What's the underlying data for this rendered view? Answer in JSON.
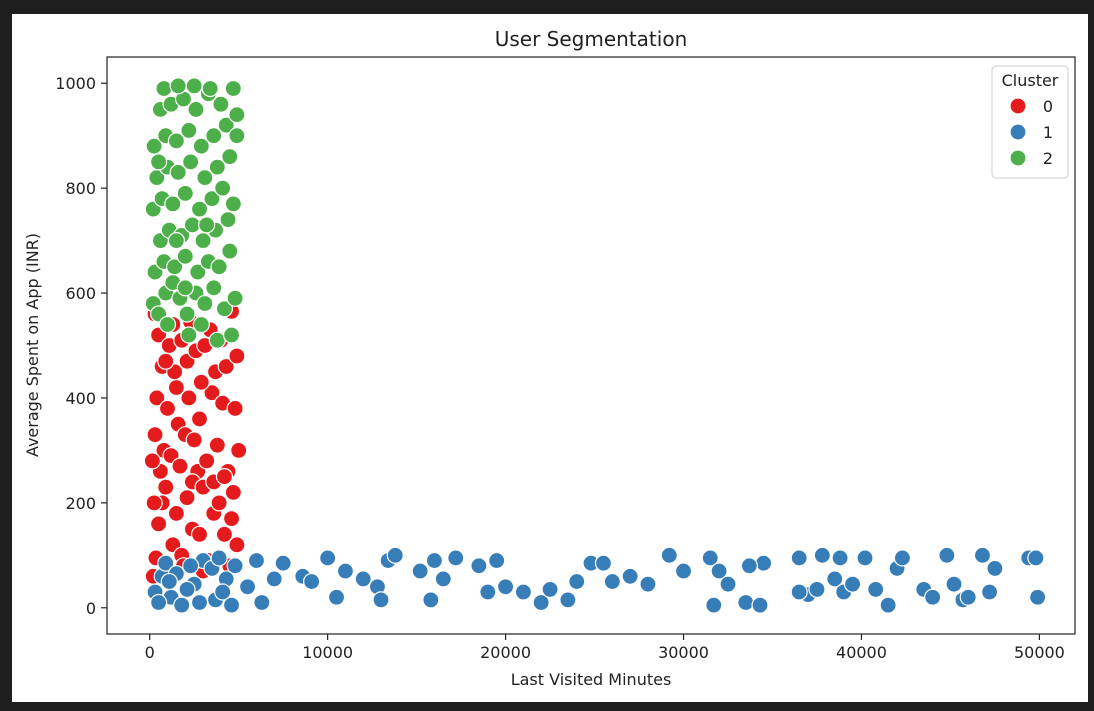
{
  "chart_data": {
    "type": "scatter",
    "title": "User Segmentation",
    "xlabel": "Last Visited Minutes",
    "ylabel": "Average Spent on App (INR)",
    "xlim": [
      -2400,
      52000
    ],
    "ylim": [
      -50,
      1050
    ],
    "xticks": [
      0,
      10000,
      20000,
      30000,
      40000,
      50000
    ],
    "xtick_labels": [
      "0",
      "10000",
      "20000",
      "30000",
      "40000",
      "50000"
    ],
    "yticks": [
      0,
      200,
      400,
      600,
      800,
      1000
    ],
    "ytick_labels": [
      "0",
      "200",
      "400",
      "600",
      "800",
      "1000"
    ],
    "grid": false,
    "legend": {
      "title": "Cluster",
      "placement": "top-right",
      "entries": [
        {
          "label": "0",
          "color": "#e41a1c"
        },
        {
          "label": "1",
          "color": "#377eb8"
        },
        {
          "label": "2",
          "color": "#4daf4a"
        }
      ]
    },
    "series": [
      {
        "name": "0",
        "color": "#e41a1c",
        "points": [
          [
            200,
            60
          ],
          [
            350,
            95
          ],
          [
            500,
            160
          ],
          [
            700,
            200
          ],
          [
            900,
            230
          ],
          [
            1100,
            60
          ],
          [
            1300,
            120
          ],
          [
            1500,
            180
          ],
          [
            1800,
            100
          ],
          [
            2100,
            210
          ],
          [
            2400,
            150
          ],
          [
            2700,
            260
          ],
          [
            3000,
            70
          ],
          [
            3300,
            90
          ],
          [
            3600,
            180
          ],
          [
            3900,
            200
          ],
          [
            4200,
            140
          ],
          [
            4600,
            170
          ],
          [
            4900,
            120
          ],
          [
            600,
            260
          ],
          [
            300,
            330
          ],
          [
            800,
            300
          ],
          [
            1200,
            290
          ],
          [
            1600,
            350
          ],
          [
            2000,
            330
          ],
          [
            2500,
            320
          ],
          [
            3200,
            280
          ],
          [
            3800,
            310
          ],
          [
            4400,
            260
          ],
          [
            5000,
            300
          ],
          [
            400,
            400
          ],
          [
            1000,
            380
          ],
          [
            1500,
            420
          ],
          [
            2200,
            400
          ],
          [
            2800,
            360
          ],
          [
            3500,
            410
          ],
          [
            4100,
            390
          ],
          [
            4800,
            380
          ],
          [
            700,
            460
          ],
          [
            1400,
            450
          ],
          [
            2100,
            470
          ],
          [
            2900,
            430
          ],
          [
            3700,
            450
          ],
          [
            4300,
            460
          ],
          [
            4900,
            480
          ],
          [
            500,
            520
          ],
          [
            1100,
            500
          ],
          [
            1800,
            510
          ],
          [
            2600,
            490
          ],
          [
            3400,
            530
          ],
          [
            4000,
            510
          ],
          [
            4600,
            565
          ],
          [
            300,
            560
          ],
          [
            1300,
            540
          ],
          [
            2300,
            545
          ],
          [
            3100,
            500
          ],
          [
            900,
            470
          ],
          [
            1700,
            270
          ],
          [
            2400,
            240
          ],
          [
            3000,
            230
          ],
          [
            3600,
            240
          ],
          [
            4200,
            250
          ],
          [
            4700,
            220
          ],
          [
            150,
            280
          ],
          [
            250,
            200
          ],
          [
            2800,
            140
          ],
          [
            1900,
            80
          ],
          [
            4500,
            80
          ]
        ]
      },
      {
        "name": "1",
        "color": "#377eb8",
        "points": [
          [
            300,
            30
          ],
          [
            700,
            60
          ],
          [
            1200,
            20
          ],
          [
            1800,
            5
          ],
          [
            2500,
            45
          ],
          [
            3000,
            90
          ],
          [
            3700,
            15
          ],
          [
            4300,
            55
          ],
          [
            4800,
            80
          ],
          [
            500,
            10
          ],
          [
            900,
            85
          ],
          [
            1500,
            65
          ],
          [
            2100,
            35
          ],
          [
            2800,
            10
          ],
          [
            3500,
            75
          ],
          [
            4100,
            30
          ],
          [
            4600,
            5
          ],
          [
            1100,
            50
          ],
          [
            2300,
            80
          ],
          [
            3900,
            95
          ],
          [
            6000,
            90
          ],
          [
            7500,
            85
          ],
          [
            5500,
            40
          ],
          [
            6300,
            10
          ],
          [
            7000,
            55
          ],
          [
            8600,
            60
          ],
          [
            9100,
            50
          ],
          [
            10000,
            95
          ],
          [
            10500,
            20
          ],
          [
            11000,
            70
          ],
          [
            12000,
            55
          ],
          [
            12800,
            40
          ],
          [
            13000,
            15
          ],
          [
            13400,
            90
          ],
          [
            13800,
            100
          ],
          [
            15200,
            70
          ],
          [
            15800,
            15
          ],
          [
            16000,
            90
          ],
          [
            16500,
            55
          ],
          [
            17200,
            95
          ],
          [
            18500,
            80
          ],
          [
            19000,
            30
          ],
          [
            19500,
            90
          ],
          [
            20000,
            40
          ],
          [
            21000,
            30
          ],
          [
            22000,
            10
          ],
          [
            22500,
            35
          ],
          [
            23500,
            15
          ],
          [
            24000,
            50
          ],
          [
            24800,
            85
          ],
          [
            25500,
            85
          ],
          [
            26000,
            50
          ],
          [
            27000,
            60
          ],
          [
            28000,
            45
          ],
          [
            29200,
            100
          ],
          [
            30000,
            70
          ],
          [
            31500,
            95
          ],
          [
            32000,
            70
          ],
          [
            32500,
            45
          ],
          [
            33500,
            10
          ],
          [
            34300,
            5
          ],
          [
            34500,
            85
          ],
          [
            36500,
            95
          ],
          [
            37000,
            25
          ],
          [
            37500,
            35
          ],
          [
            37800,
            100
          ],
          [
            38500,
            55
          ],
          [
            39000,
            30
          ],
          [
            39500,
            45
          ],
          [
            40200,
            95
          ],
          [
            40800,
            35
          ],
          [
            41500,
            5
          ],
          [
            42000,
            75
          ],
          [
            42300,
            95
          ],
          [
            43500,
            35
          ],
          [
            44000,
            20
          ],
          [
            44800,
            100
          ],
          [
            45200,
            45
          ],
          [
            45700,
            15
          ],
          [
            46000,
            20
          ],
          [
            46800,
            100
          ],
          [
            47200,
            30
          ],
          [
            47500,
            75
          ],
          [
            49400,
            95
          ],
          [
            49800,
            95
          ],
          [
            49900,
            20
          ],
          [
            31700,
            5
          ],
          [
            33700,
            80
          ],
          [
            36500,
            30
          ],
          [
            38800,
            95
          ]
        ]
      },
      {
        "name": "2",
        "color": "#4daf4a",
        "points": [
          [
            200,
            580
          ],
          [
            500,
            560
          ],
          [
            900,
            600
          ],
          [
            1300,
            620
          ],
          [
            1700,
            590
          ],
          [
            2100,
            560
          ],
          [
            2600,
            600
          ],
          [
            3100,
            580
          ],
          [
            3600,
            610
          ],
          [
            4200,
            570
          ],
          [
            4800,
            590
          ],
          [
            300,
            640
          ],
          [
            800,
            660
          ],
          [
            1400,
            650
          ],
          [
            2000,
            670
          ],
          [
            2700,
            640
          ],
          [
            3300,
            660
          ],
          [
            3900,
            650
          ],
          [
            4500,
            680
          ],
          [
            600,
            700
          ],
          [
            1100,
            720
          ],
          [
            1800,
            710
          ],
          [
            2400,
            730
          ],
          [
            3000,
            700
          ],
          [
            3700,
            720
          ],
          [
            4400,
            740
          ],
          [
            200,
            760
          ],
          [
            700,
            780
          ],
          [
            1300,
            770
          ],
          [
            2000,
            790
          ],
          [
            2800,
            760
          ],
          [
            3500,
            780
          ],
          [
            4100,
            800
          ],
          [
            4700,
            770
          ],
          [
            400,
            820
          ],
          [
            1000,
            840
          ],
          [
            1600,
            830
          ],
          [
            2300,
            850
          ],
          [
            3100,
            820
          ],
          [
            3800,
            840
          ],
          [
            4500,
            860
          ],
          [
            250,
            880
          ],
          [
            900,
            900
          ],
          [
            1500,
            890
          ],
          [
            2200,
            910
          ],
          [
            2900,
            880
          ],
          [
            3600,
            900
          ],
          [
            4300,
            920
          ],
          [
            4900,
            940
          ],
          [
            600,
            950
          ],
          [
            1200,
            960
          ],
          [
            1900,
            970
          ],
          [
            2600,
            950
          ],
          [
            3300,
            980
          ],
          [
            4000,
            960
          ],
          [
            4700,
            990
          ],
          [
            800,
            990
          ],
          [
            1600,
            995
          ],
          [
            2500,
            995
          ],
          [
            3400,
            990
          ],
          [
            2200,
            520
          ],
          [
            3800,
            510
          ],
          [
            1000,
            540
          ],
          [
            2900,
            540
          ],
          [
            4600,
            520
          ],
          [
            1500,
            700
          ],
          [
            3200,
            730
          ],
          [
            4900,
            900
          ],
          [
            500,
            850
          ],
          [
            2000,
            610
          ]
        ]
      }
    ]
  }
}
